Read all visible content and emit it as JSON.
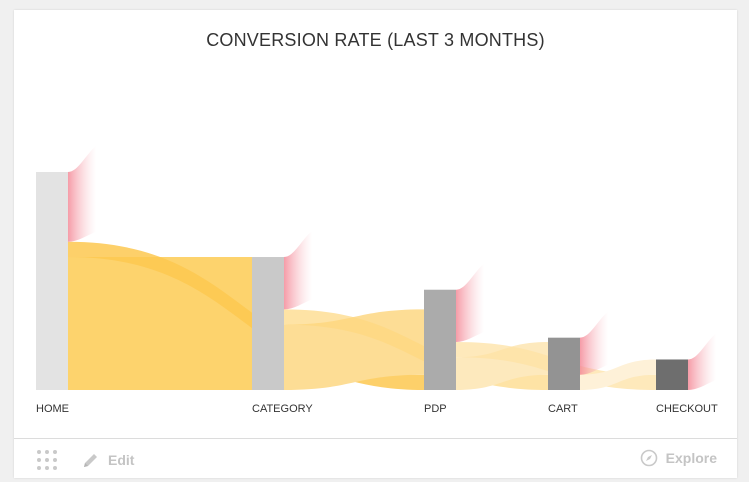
{
  "chart_data": {
    "type": "sankey-funnel",
    "title": "CONVERSION RATE (LAST 3 MONTHS)",
    "stages": [
      {
        "label": "HOME",
        "value": 100,
        "color": "#e3e3e3"
      },
      {
        "label": "CATEGORY",
        "value": 61,
        "color": "#c9c9c9"
      },
      {
        "label": "PDP",
        "value": 46,
        "color": "#ababab"
      },
      {
        "label": "CART",
        "value": 24,
        "color": "#939393"
      },
      {
        "label": "CHECKOUT",
        "value": 14,
        "color": "#6e6e6e"
      }
    ],
    "links": [
      {
        "from": 0,
        "to": 1,
        "value": 61,
        "color": "#fdd36d",
        "opacity": 1.0
      },
      {
        "from": 0,
        "to": 2,
        "value": 7,
        "color": "#fdc850",
        "opacity": 0.85
      },
      {
        "from": 1,
        "to": 2,
        "value": 30,
        "color": "#fddd95",
        "opacity": 1.0
      },
      {
        "from": 1,
        "to": 3,
        "value": 7,
        "color": "#fdd77f",
        "opacity": 0.7
      },
      {
        "from": 2,
        "to": 3,
        "value": 15,
        "color": "#fde9bd",
        "opacity": 1.0
      },
      {
        "from": 2,
        "to": 4,
        "value": 7,
        "color": "#fde2a4",
        "opacity": 0.75
      },
      {
        "from": 3,
        "to": 4,
        "value": 7,
        "color": "#fef1d8",
        "opacity": 1.0
      }
    ],
    "dropoff_color": "#f7a7b0"
  },
  "footer": {
    "edit_label": "Edit",
    "explore_label": "Explore"
  },
  "icons": {
    "grip": "grip-dots-icon",
    "edit": "pencil-icon",
    "explore": "compass-icon"
  }
}
